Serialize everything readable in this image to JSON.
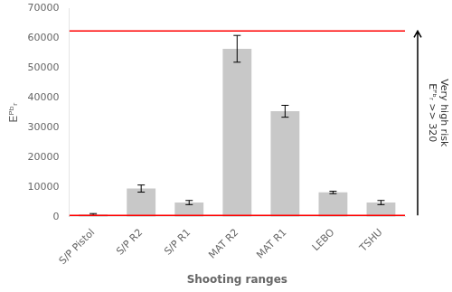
{
  "chart_data": {
    "type": "bar",
    "categories": [
      "S/P Pistol",
      "S/P R2",
      "S/P R1",
      "MAT R2",
      "MAT R1",
      "LEBO",
      "TSHU"
    ],
    "values": [
      800,
      9500,
      4800,
      56500,
      35500,
      8200,
      4800
    ],
    "errors": [
      300,
      1200,
      700,
      4500,
      2000,
      400,
      700
    ],
    "color": "#c8c8c8",
    "hlines": [
      {
        "value": 62500,
        "color": "#ff0000"
      },
      {
        "value": 500,
        "color": "#ff0000"
      }
    ],
    "ylabel": "Eᴾᵇᵣ",
    "xlabel": "Shooting ranges",
    "annotation": [
      "Very high risk",
      "Eᴾᵇᵣ >> 320"
    ],
    "ylim": [
      0,
      70000
    ],
    "yticks": [
      0,
      10000,
      20000,
      30000,
      40000,
      50000,
      60000,
      70000
    ],
    "grid": false
  }
}
